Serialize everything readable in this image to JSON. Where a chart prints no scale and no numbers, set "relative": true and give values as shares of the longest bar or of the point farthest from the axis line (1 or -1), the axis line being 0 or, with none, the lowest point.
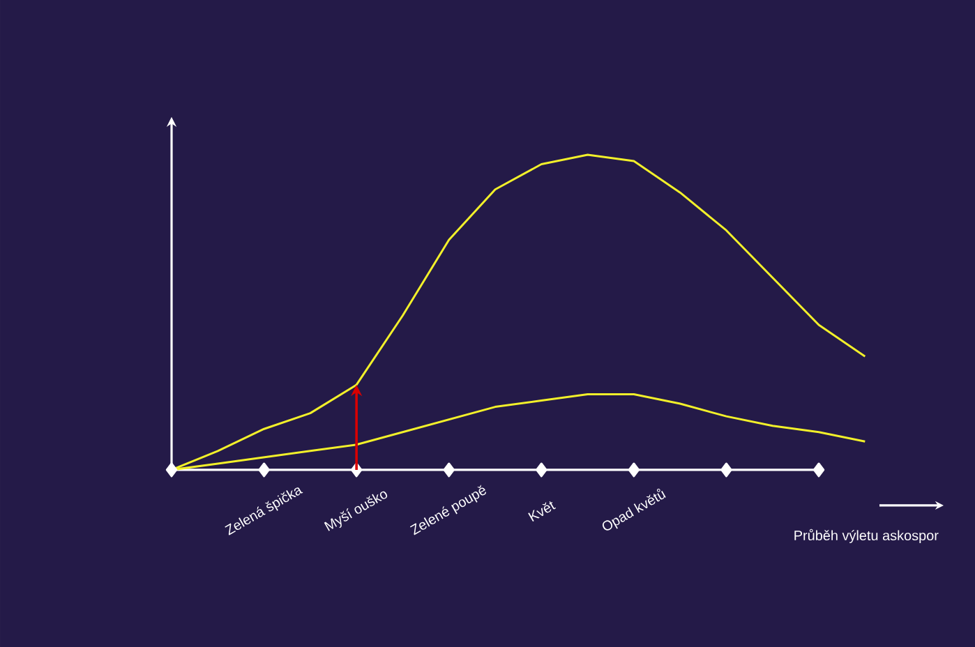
{
  "chart_data": {
    "type": "line",
    "relative": true,
    "xlabel": "Průběh výletu askospor",
    "categories": [
      null,
      null,
      "Zelená špička",
      null,
      "Myší ouško",
      null,
      "Zelené poupě",
      null,
      "Květ",
      null,
      "Opad květů",
      null,
      null,
      null,
      null,
      null
    ],
    "series": [
      {
        "color": "#f2f02a",
        "values": [
          0,
          0.06,
          0.13,
          0.18,
          0.27,
          0.49,
          0.73,
          0.89,
          0.97,
          1,
          0.98,
          0.88,
          0.76,
          0.61,
          0.46,
          0.36
        ]
      },
      {
        "type": "scatter",
        "marker": "diamond",
        "color": "#ffffff",
        "values": [
          0,
          null,
          0,
          null,
          0,
          null,
          0,
          null,
          0,
          null,
          0,
          null,
          0,
          null,
          0,
          null
        ]
      },
      {
        "color": "#f2f02a",
        "values": [
          0,
          0.02,
          0.04,
          0.06,
          0.08,
          0.12,
          0.16,
          0.2,
          0.22,
          0.24,
          0.24,
          0.21,
          0.17,
          0.14,
          0.12,
          0.09
        ]
      }
    ],
    "marker": "none",
    "line_style": "solid"
  }
}
